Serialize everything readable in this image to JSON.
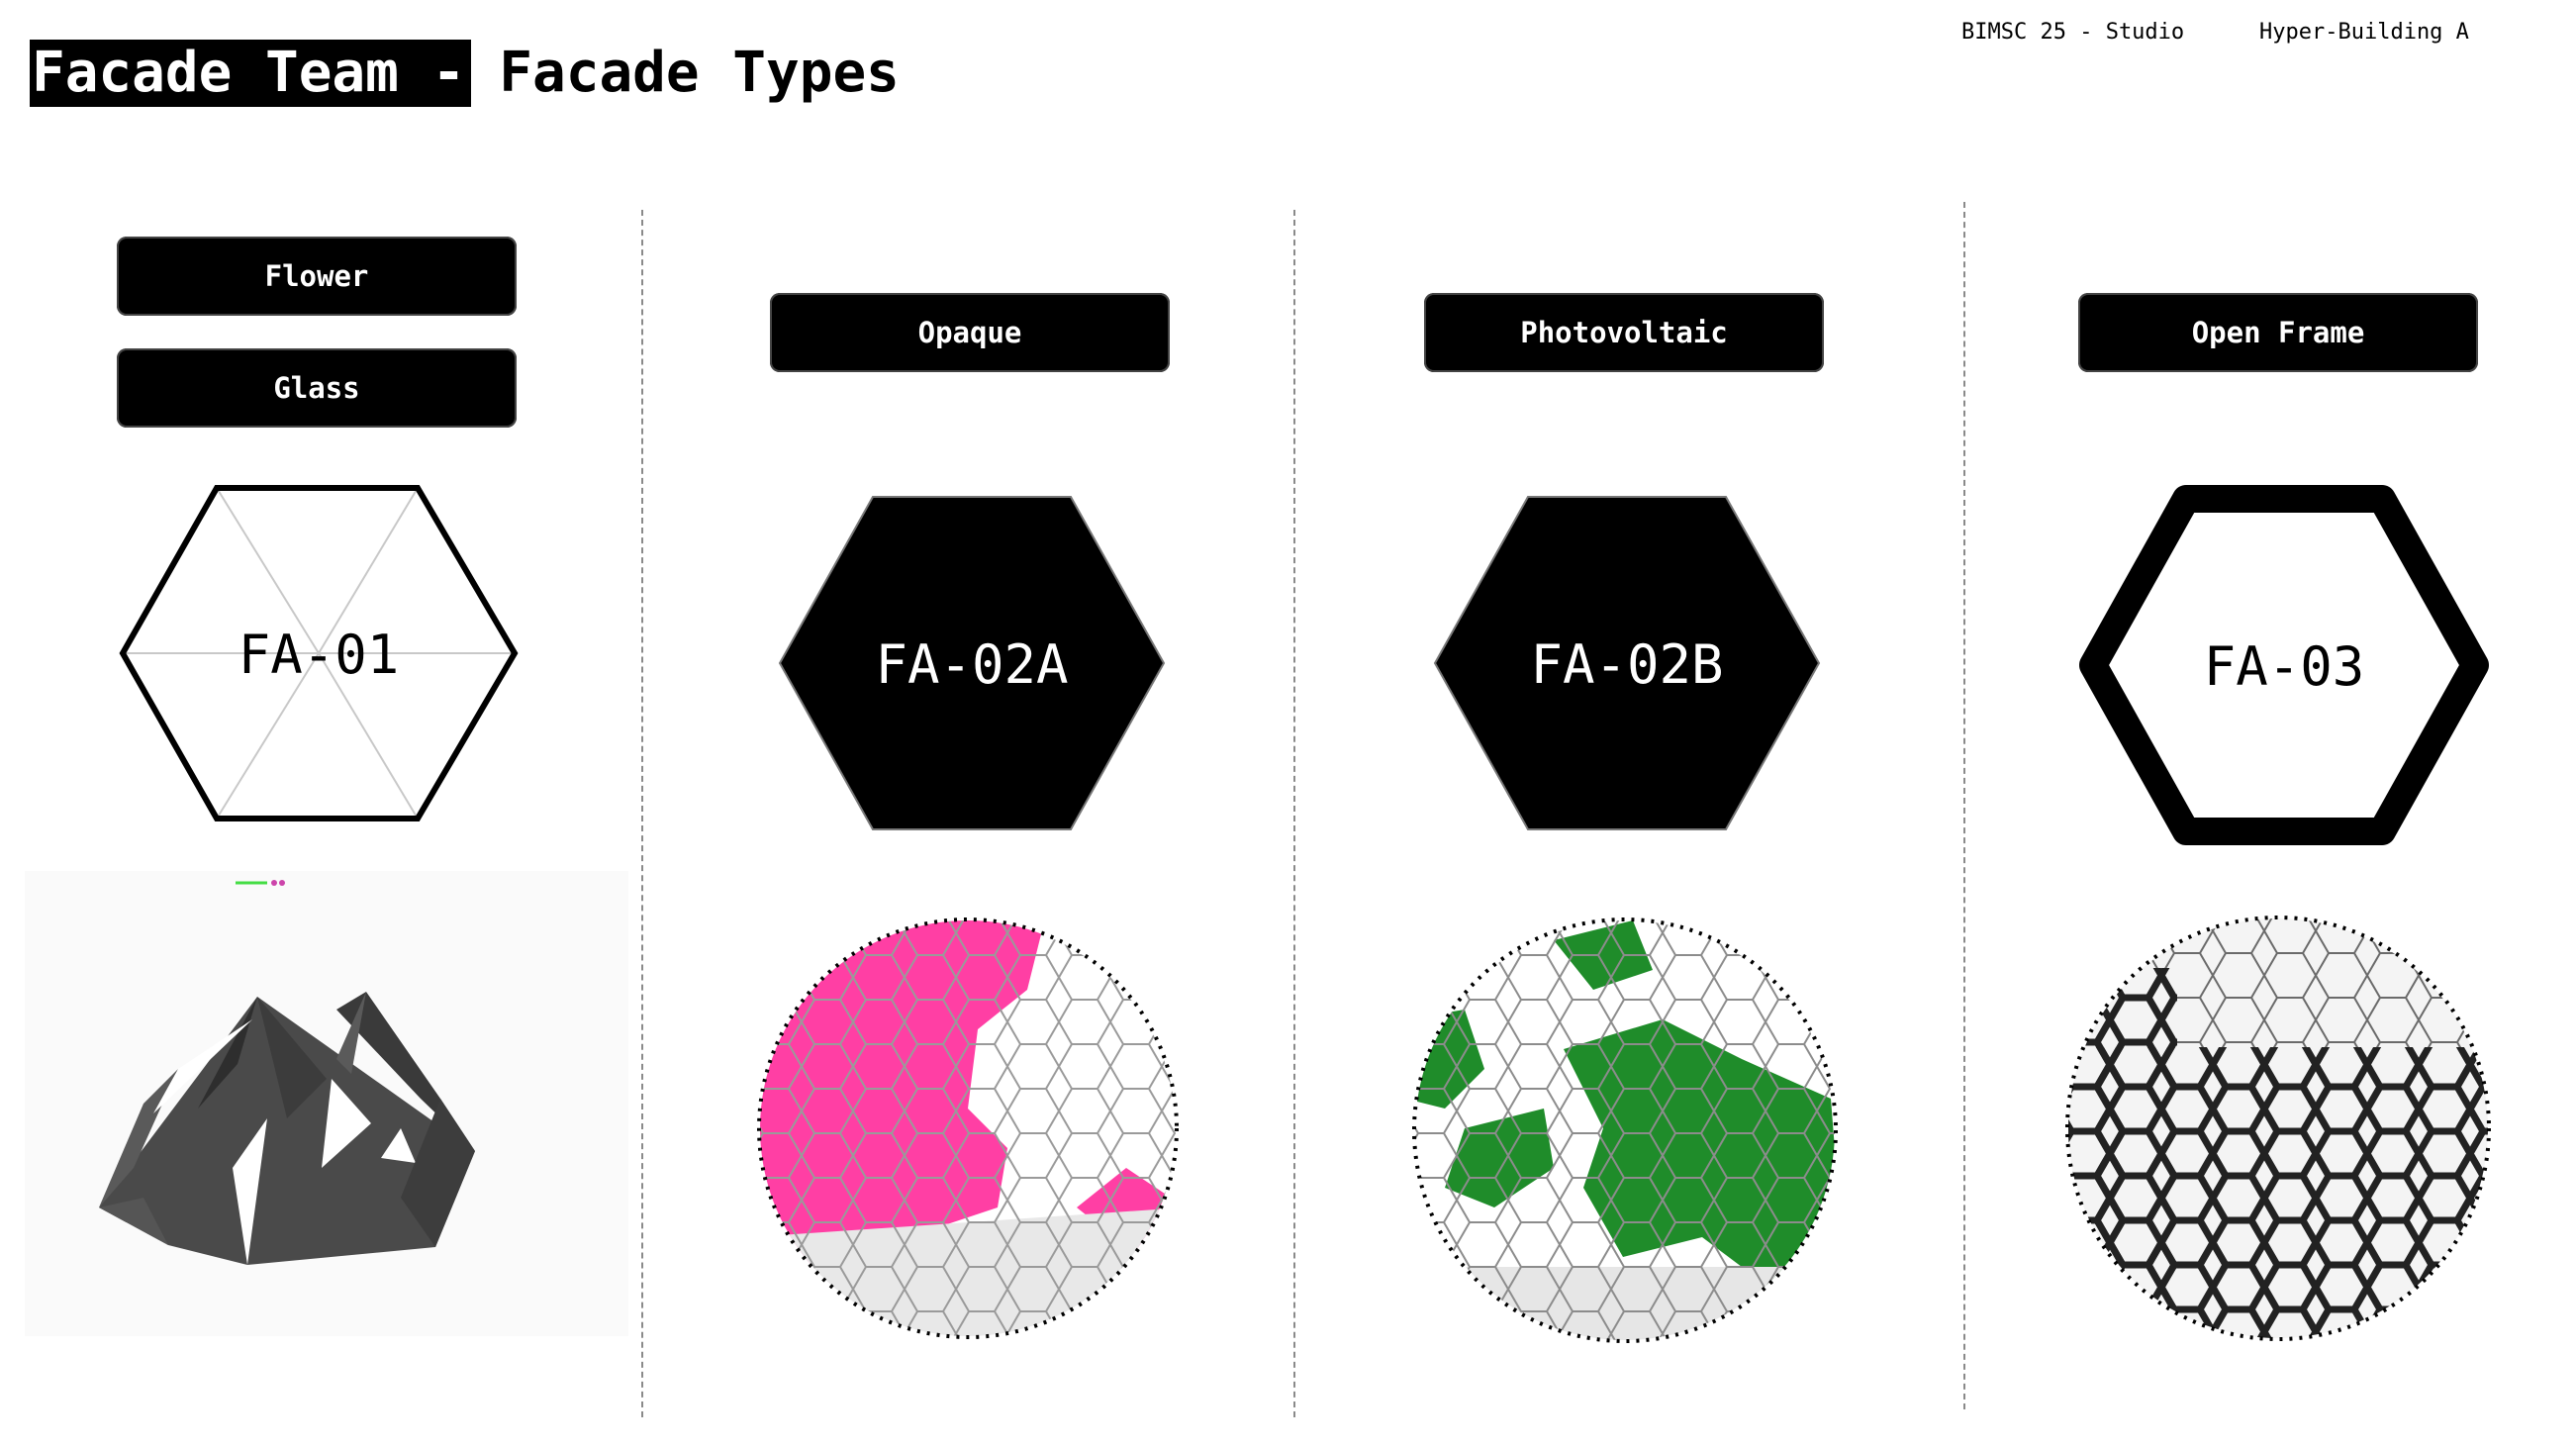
{
  "title": {
    "highlight": "Facade Team -",
    "rest": "Facade Types"
  },
  "header": {
    "studio": "BIMSC 25 - Studio",
    "building": "Hyper-Building A"
  },
  "columns": [
    {
      "tags": [
        "Flower",
        "Glass"
      ],
      "code": "FA-01",
      "style": "outline-thin"
    },
    {
      "tags": [
        "Opaque"
      ],
      "code": "FA-02A",
      "style": "solid",
      "accent": "#ff3fa4"
    },
    {
      "tags": [
        "Photovoltaic"
      ],
      "code": "FA-02B",
      "style": "solid",
      "accent": "#1f8c2a"
    },
    {
      "tags": [
        "Open Frame"
      ],
      "code": "FA-03",
      "style": "outline-thick"
    }
  ],
  "colors": {
    "opaque_accent": "#ff3fa4",
    "photovoltaic_accent": "#1f8c2a",
    "frame": "#222222",
    "divider": "#8a8a8a"
  }
}
